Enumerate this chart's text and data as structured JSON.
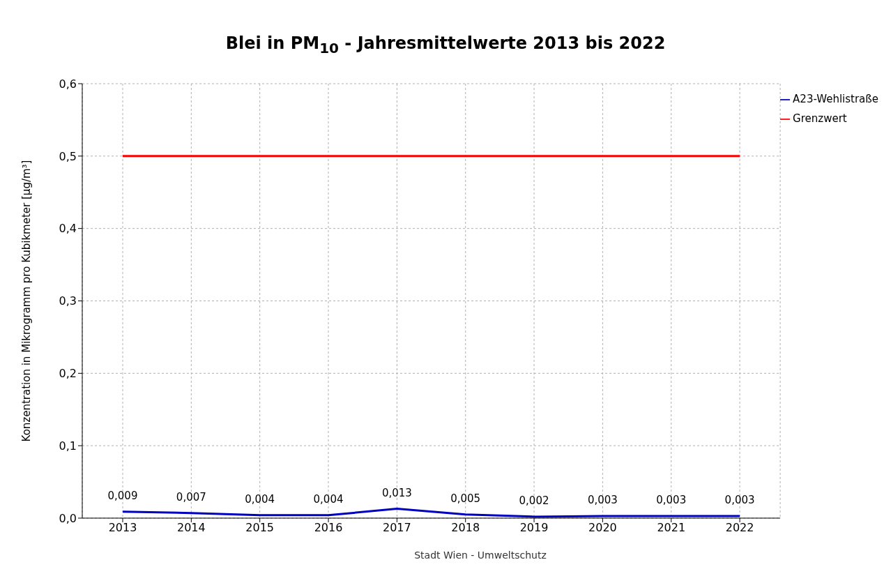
{
  "chart_data": {
    "type": "line",
    "title": "Blei in PM$_{10}$ - Jahresmittelwerte 2013 bis 2022",
    "ylabel": "Konzentration in Mikrogramm pro Kubikmeter [µg/m³]",
    "categories": [
      "2013",
      "2014",
      "2015",
      "2016",
      "2017",
      "2018",
      "2019",
      "2020",
      "2021",
      "2022"
    ],
    "series": [
      {
        "name": "A23-Wehlistraße",
        "color": "#0000c0",
        "values": [
          0.009,
          0.007,
          0.004,
          0.004,
          0.013,
          0.005,
          0.002,
          0.003,
          0.003,
          0.003
        ],
        "value_labels": [
          "0,009",
          "0,007",
          "0,004",
          "0,004",
          "0,013",
          "0,005",
          "0,002",
          "0,003",
          "0,003",
          "0,003"
        ]
      },
      {
        "name": "Grenzwert",
        "color": "#ff0000",
        "values": [
          0.5,
          0.5,
          0.5,
          0.5,
          0.5,
          0.5,
          0.5,
          0.5,
          0.5,
          0.5
        ]
      }
    ],
    "ylim": [
      0,
      0.6
    ],
    "yticks": [
      {
        "value": 0,
        "label": "0,0"
      },
      {
        "value": 0.1,
        "label": "0,1"
      },
      {
        "value": 0.2,
        "label": "0,2"
      },
      {
        "value": 0.3,
        "label": "0,3"
      },
      {
        "value": 0.4,
        "label": "0,4"
      },
      {
        "value": 0.5,
        "label": "0,5"
      },
      {
        "value": 0.6,
        "label": "0,6"
      }
    ],
    "grid": true,
    "legend": "top right",
    "annotations": [
      "Stadt Wien - Umweltschutz"
    ]
  }
}
